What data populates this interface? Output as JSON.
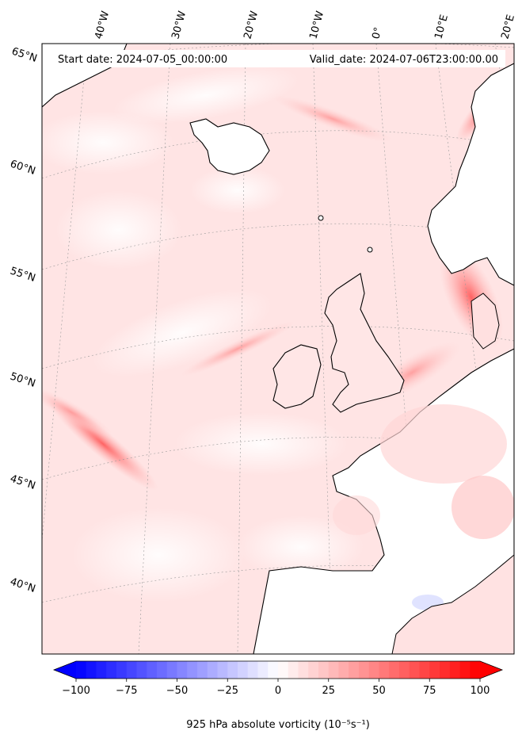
{
  "header": {
    "start_label": "Start date: 2024-07-05_00:00:00",
    "valid_label": "Valid_date: 2024-07-06T23:00:00.00"
  },
  "map": {
    "projection": "conic",
    "extent_lon": [
      -45,
      20
    ],
    "extent_lat": [
      37,
      65
    ],
    "field": "925 hPa absolute vorticity",
    "lon_labels": [
      "40°W",
      "30°W",
      "20°W",
      "10°W",
      "0°",
      "10°E",
      "20°E"
    ],
    "lat_labels": [
      "65°N",
      "60°N",
      "55°N",
      "50°N",
      "45°N",
      "40°N"
    ],
    "gridlines": true,
    "colors": {
      "land_mask": "#ffffff",
      "coast": "#000000",
      "background_field": "#ffe3e3"
    }
  },
  "colorbar": {
    "cmap": "bwr",
    "min": -100,
    "max": 100,
    "ticks": [
      -100,
      -75,
      -50,
      -25,
      0,
      25,
      50,
      75,
      100
    ],
    "tick_labels": [
      "−100",
      "−75",
      "−50",
      "−25",
      "0",
      "25",
      "50",
      "75",
      "100"
    ],
    "extend": "both",
    "label": "925 hPa absolute vorticity (10⁻⁵s⁻¹)",
    "colors": {
      "low": "#0000ff",
      "mid": "#ffffff",
      "high": "#ff0000"
    }
  }
}
